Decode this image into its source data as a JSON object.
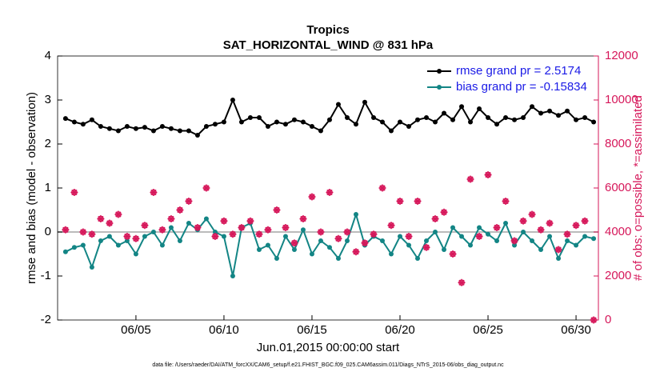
{
  "chart_data": {
    "type": "line",
    "title": "Tropics",
    "subtitle": "SAT_HORIZONTAL_WIND @ 831 hPa",
    "xlabel": "Jun.01,2015 00:00:00 start",
    "ylabel": "rmse and bias (model - observation)",
    "y2label": "# of obs: o=possible, *=assimilated",
    "footnote": "data file: /Users/raeder/DAI/ATM_forcXX/CAM6_setup/f.e21.FHIST_BGC.f09_025.CAM6assim.011/Diags_NTrS_2015-06/obs_diag_output.nc",
    "legend": "upper right",
    "x": [
      0,
      0.5,
      1,
      1.5,
      2,
      2.5,
      3,
      3.5,
      4,
      4.5,
      5,
      5.5,
      6,
      6.5,
      7,
      7.5,
      8,
      8.5,
      9,
      9.5,
      10,
      10.5,
      11,
      11.5,
      12,
      12.5,
      13,
      13.5,
      14,
      14.5,
      15,
      15.5,
      16,
      16.5,
      17,
      17.5,
      18,
      18.5,
      19,
      19.5,
      20,
      20.5,
      21,
      21.5,
      22,
      22.5,
      23,
      23.5,
      24,
      24.5,
      25,
      25.5,
      26,
      26.5,
      27,
      27.5,
      28,
      28.5,
      29,
      29.5,
      30
    ],
    "series": [
      {
        "name": "rmse grand pr = 2.5174",
        "color": "#000000",
        "values": [
          2.58,
          2.5,
          2.45,
          2.55,
          2.4,
          2.35,
          2.3,
          2.4,
          2.35,
          2.38,
          2.3,
          2.4,
          2.35,
          2.3,
          2.3,
          2.2,
          2.4,
          2.45,
          2.5,
          3.0,
          2.5,
          2.6,
          2.6,
          2.4,
          2.5,
          2.45,
          2.55,
          2.5,
          2.4,
          2.3,
          2.55,
          2.9,
          2.6,
          2.45,
          2.95,
          2.6,
          2.5,
          2.3,
          2.5,
          2.4,
          2.55,
          2.6,
          2.5,
          2.7,
          2.55,
          2.85,
          2.5,
          2.8,
          2.6,
          2.45,
          2.6,
          2.55,
          2.6,
          2.85,
          2.7,
          2.75,
          2.65,
          2.75,
          2.55,
          2.6,
          2.5
        ]
      },
      {
        "name": "bias grand pr = -0.15834",
        "color": "#138585",
        "values": [
          -0.45,
          -0.35,
          -0.3,
          -0.8,
          -0.2,
          -0.1,
          -0.3,
          -0.2,
          -0.5,
          -0.1,
          0.0,
          -0.3,
          0.1,
          -0.2,
          0.2,
          0.05,
          0.3,
          0.0,
          -0.1,
          -1.0,
          0.1,
          0.2,
          -0.4,
          -0.3,
          -0.6,
          -0.1,
          -0.4,
          0.05,
          -0.5,
          -0.2,
          -0.35,
          -0.6,
          -0.2,
          0.4,
          -0.3,
          -0.1,
          -0.2,
          -0.5,
          -0.1,
          -0.3,
          -0.6,
          -0.2,
          0.0,
          -0.4,
          0.1,
          -0.1,
          -0.3,
          0.1,
          -0.05,
          -0.2,
          0.2,
          -0.3,
          0.0,
          -0.2,
          -0.4,
          -0.1,
          -0.6,
          -0.2,
          -0.3,
          -0.1,
          -0.15
        ]
      },
      {
        "axis": "y2",
        "color": "#d6175a",
        "values": [
          4100,
          5800,
          4000,
          3900,
          4600,
          4400,
          4800,
          3800,
          3700,
          4300,
          5800,
          4100,
          4600,
          5000,
          5400,
          4200,
          6000,
          3800,
          4500,
          3900,
          4200,
          4500,
          3900,
          4100,
          5000,
          4200,
          3500,
          4600,
          5600,
          4000,
          5800,
          3700,
          4000,
          3100,
          3500,
          3900,
          6000,
          4300,
          5400,
          3800,
          5400,
          3300,
          4600,
          4900,
          3000,
          1700,
          6400,
          3800,
          6600,
          4200,
          5400,
          3600,
          4500,
          4800,
          4100,
          4400,
          3200,
          3900,
          4300,
          4500,
          0
        ]
      }
    ],
    "xlim": [
      -0.45,
      30.27
    ],
    "xticks": [
      {
        "value": 4,
        "label": "06/05"
      },
      {
        "value": 9,
        "label": "06/10"
      },
      {
        "value": 14,
        "label": "06/15"
      },
      {
        "value": 19,
        "label": "06/20"
      },
      {
        "value": 24,
        "label": "06/25"
      },
      {
        "value": 29,
        "label": "06/30"
      }
    ],
    "ylim": [
      -2,
      4
    ],
    "yticks": [
      -2,
      -1,
      0,
      1,
      2,
      3,
      4
    ],
    "y2lim": [
      0,
      12000
    ],
    "y2ticks": [
      0,
      2000,
      4000,
      6000,
      8000,
      10000,
      12000
    ],
    "zero_line": 0
  }
}
